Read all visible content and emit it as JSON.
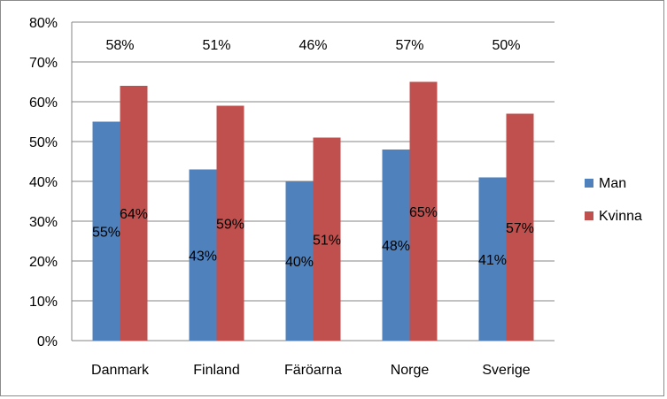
{
  "chart_data": {
    "type": "bar",
    "categories": [
      "Danmark",
      "Finland",
      "Färöarna",
      "Norge",
      "Sverige"
    ],
    "series": [
      {
        "name": "Man",
        "values": [
          55,
          43,
          40,
          48,
          41
        ],
        "labels": [
          "55%",
          "43%",
          "40%",
          "48%",
          "41%"
        ],
        "color": "#4f81bd"
      },
      {
        "name": "Kvinna",
        "values": [
          64,
          59,
          51,
          65,
          57
        ],
        "labels": [
          "64%",
          "59%",
          "51%",
          "65%",
          "57%"
        ],
        "color": "#c0504d"
      }
    ],
    "totals": [
      "58%",
      "51%",
      "46%",
      "57%",
      "50%"
    ],
    "ylim": [
      0,
      80
    ],
    "yticks": [
      0,
      10,
      20,
      30,
      40,
      50,
      60,
      70,
      80
    ],
    "ytick_labels": [
      "0%",
      "10%",
      "20%",
      "30%",
      "40%",
      "50%",
      "60%",
      "70%",
      "80%"
    ],
    "grid": true,
    "legend_position": "right",
    "gridline_color": "#868686"
  }
}
